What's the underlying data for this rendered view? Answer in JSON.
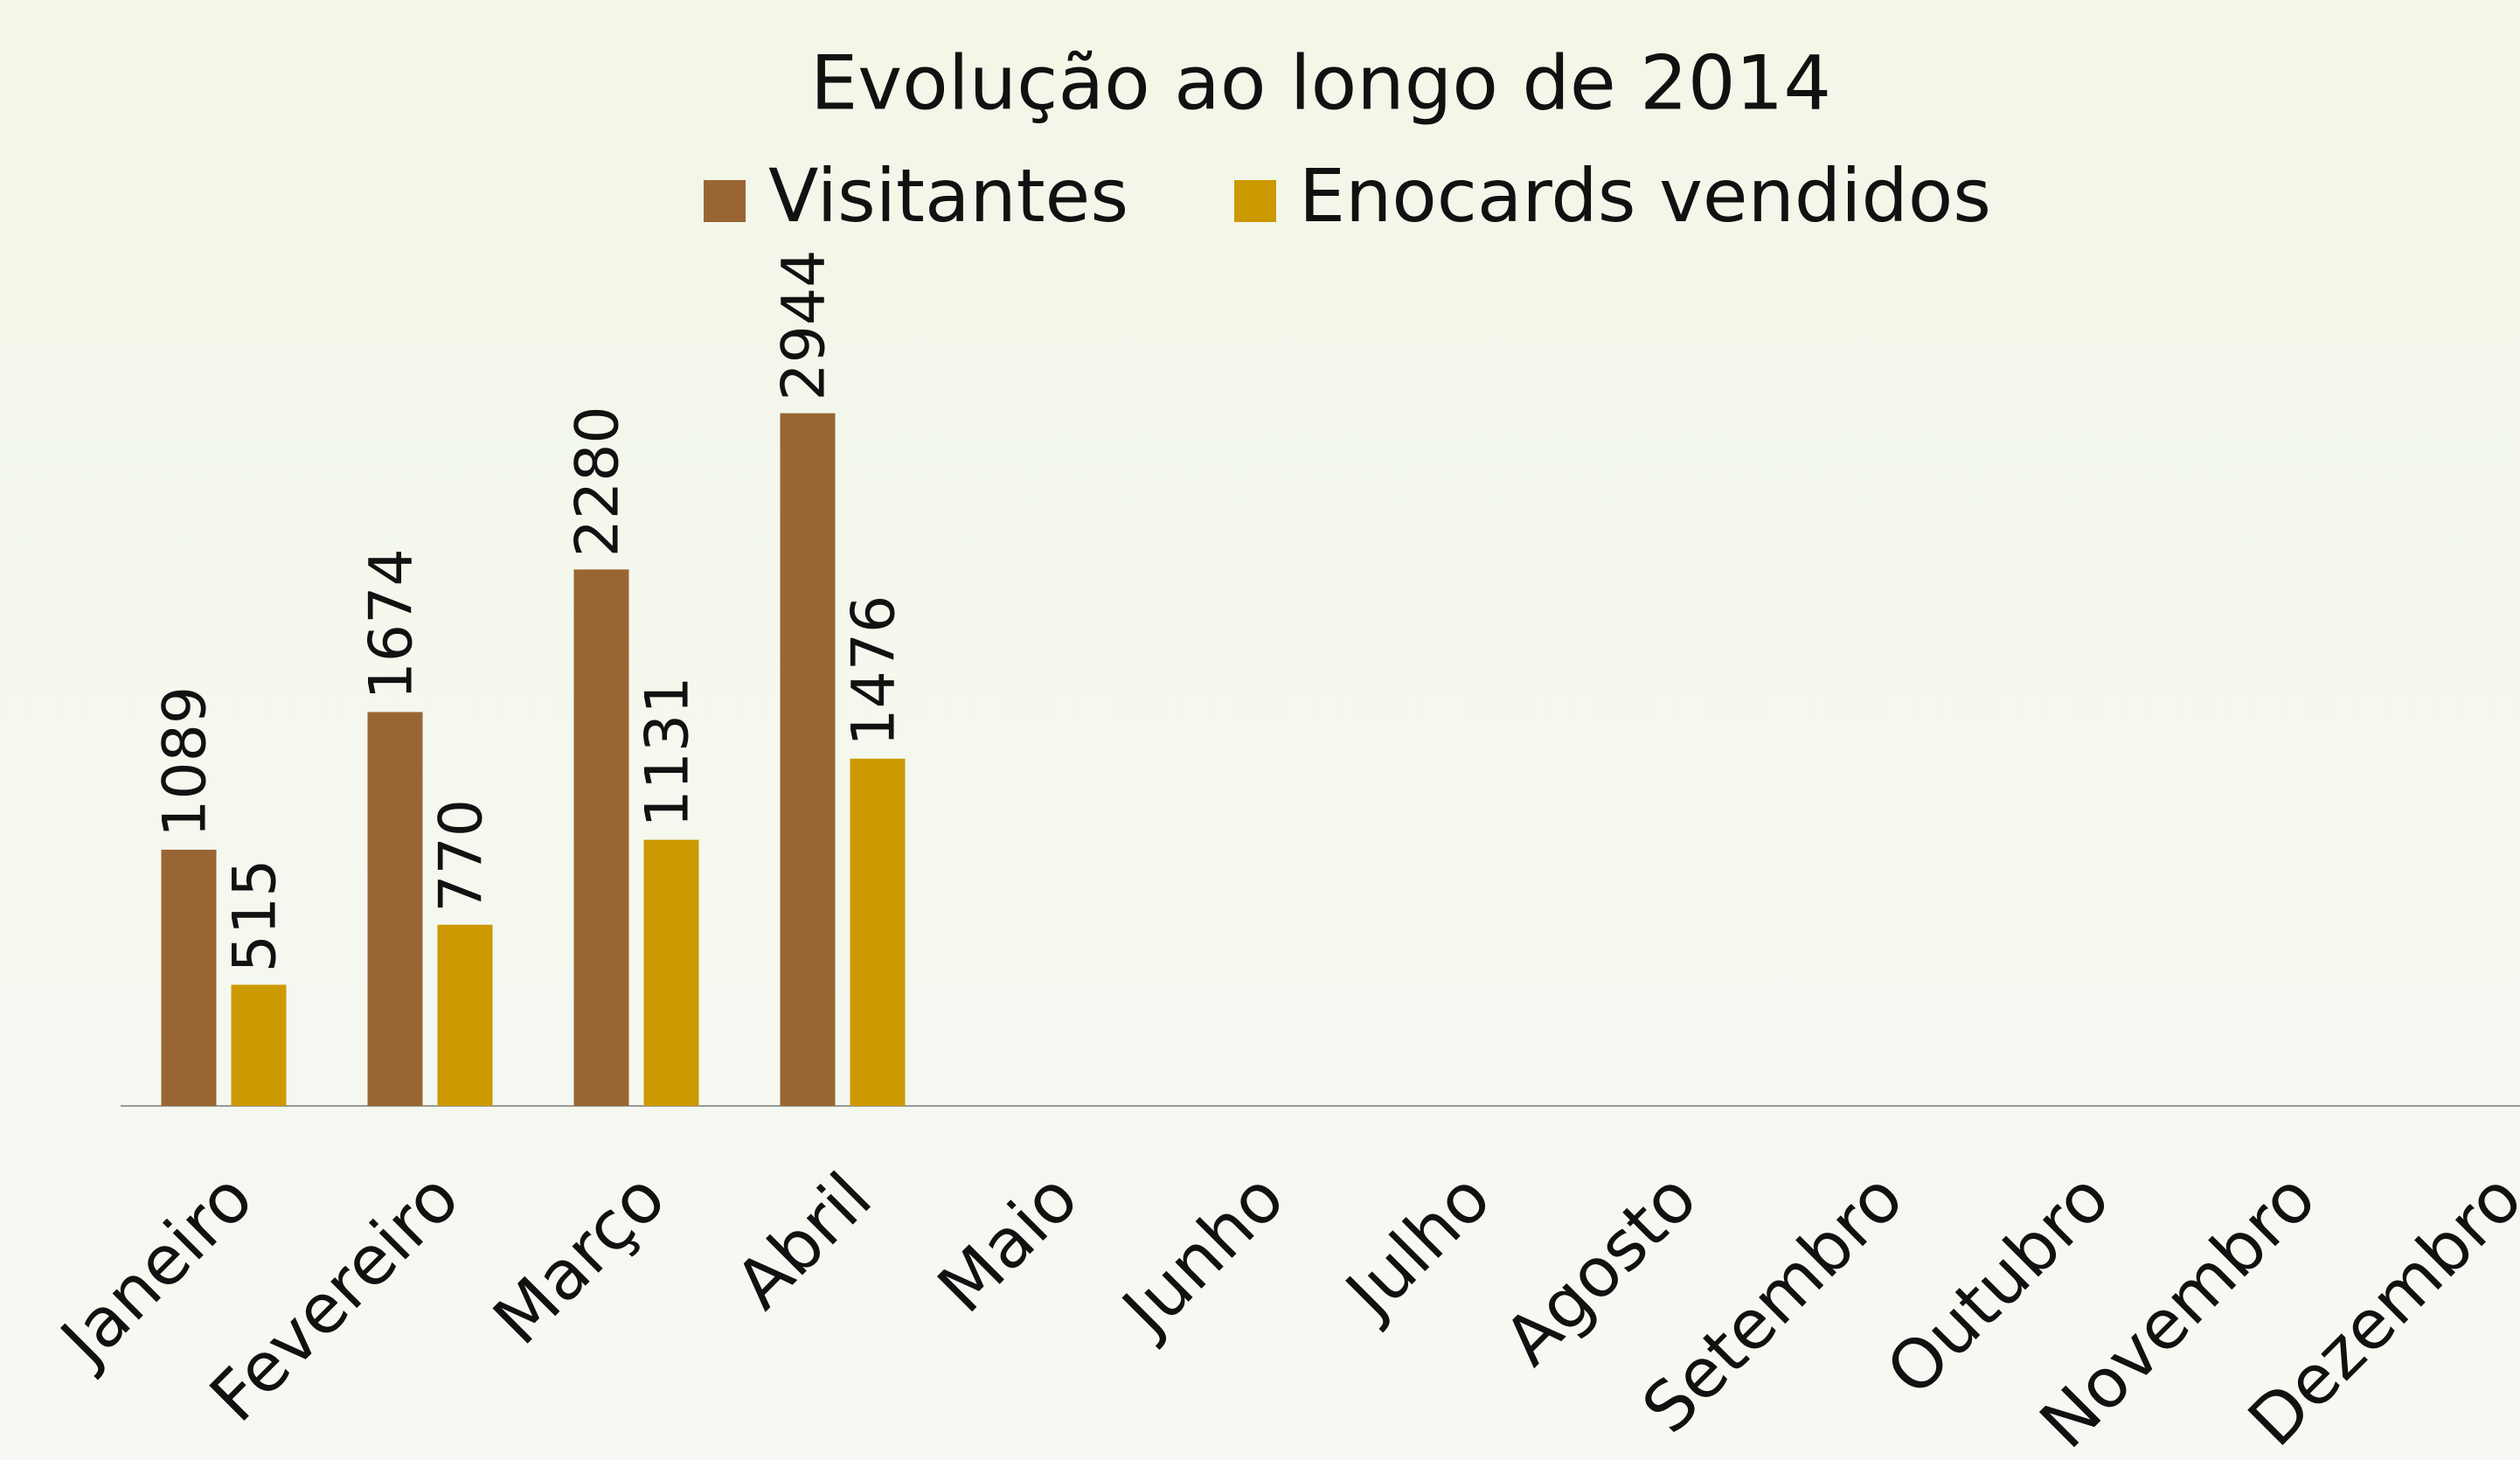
{
  "chart_data": {
    "type": "bar",
    "title": "Evolução ao longo de 2014",
    "categories": [
      "Janeiro",
      "Fevereiro",
      "Março",
      "Abril",
      "Maio",
      "Junho",
      "Julho",
      "Agosto",
      "Setembro",
      "Outubro",
      "Novembro",
      "Dezembro"
    ],
    "series": [
      {
        "name": "Visitantes",
        "color": "#996633",
        "values": [
          1089,
          1674,
          2280,
          2944,
          null,
          null,
          null,
          null,
          null,
          null,
          null,
          null
        ]
      },
      {
        "name": "Enocards vendidos",
        "color": "#cc9900",
        "values": [
          515,
          770,
          1131,
          1476,
          null,
          null,
          null,
          null,
          null,
          null,
          null,
          null
        ]
      }
    ],
    "ylim": [
      0,
      3500
    ],
    "legend": "top"
  }
}
